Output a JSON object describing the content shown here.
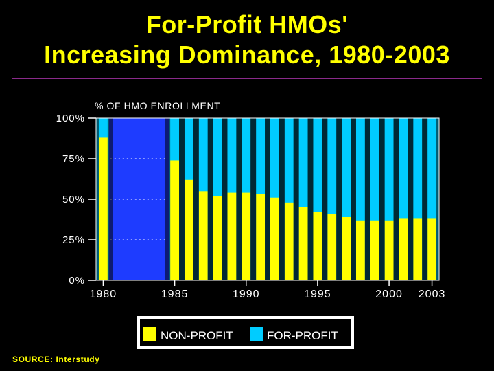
{
  "title": {
    "line1": "For-Profit HMOs'",
    "line2": "Increasing Dominance, 1980-2003"
  },
  "source": "SOURCE: Interstudy",
  "colors": {
    "background": "#000000",
    "title": "#ffff00",
    "non_profit": "#ffff00",
    "for_profit": "#00ccff",
    "nineteen_eighties_gap": "#1e3cff",
    "axis_text": "#ffffff",
    "legend_bg": "#ffffff"
  },
  "chart_data": {
    "type": "bar",
    "stacked": true,
    "ylabel": "% OF HMO ENROLLMENT",
    "ylim": [
      0,
      100
    ],
    "yticks": [
      "0%",
      "25%",
      "50%",
      "75%",
      "100%"
    ],
    "ytick_values": [
      0,
      25,
      50,
      75,
      100
    ],
    "x_tick_labels": [
      "1980",
      "1985",
      "1990",
      "1995",
      "2000",
      "2003"
    ],
    "x_tick_values": [
      1980,
      1985,
      1990,
      1995,
      2000,
      2003
    ],
    "x_range": [
      1980,
      2003
    ],
    "missing_years": [
      1981,
      1982,
      1983,
      1984
    ],
    "x": [
      1980,
      1985,
      1986,
      1987,
      1988,
      1989,
      1990,
      1991,
      1992,
      1993,
      1994,
      1995,
      1996,
      1997,
      1998,
      1999,
      2000,
      2001,
      2002,
      2003
    ],
    "series": [
      {
        "name": "NON-PROFIT",
        "values": [
          88,
          74,
          62,
          55,
          52,
          54,
          54,
          53,
          51,
          48,
          45,
          42,
          41,
          39,
          37,
          37,
          37,
          38,
          38,
          38
        ]
      },
      {
        "name": "FOR-PROFIT",
        "values": [
          12,
          26,
          38,
          45,
          48,
          46,
          46,
          47,
          49,
          52,
          55,
          58,
          59,
          61,
          63,
          63,
          63,
          62,
          62,
          62
        ]
      }
    ],
    "legend": [
      "NON-PROFIT",
      "FOR-PROFIT"
    ],
    "legend_position": "bottom-center"
  }
}
